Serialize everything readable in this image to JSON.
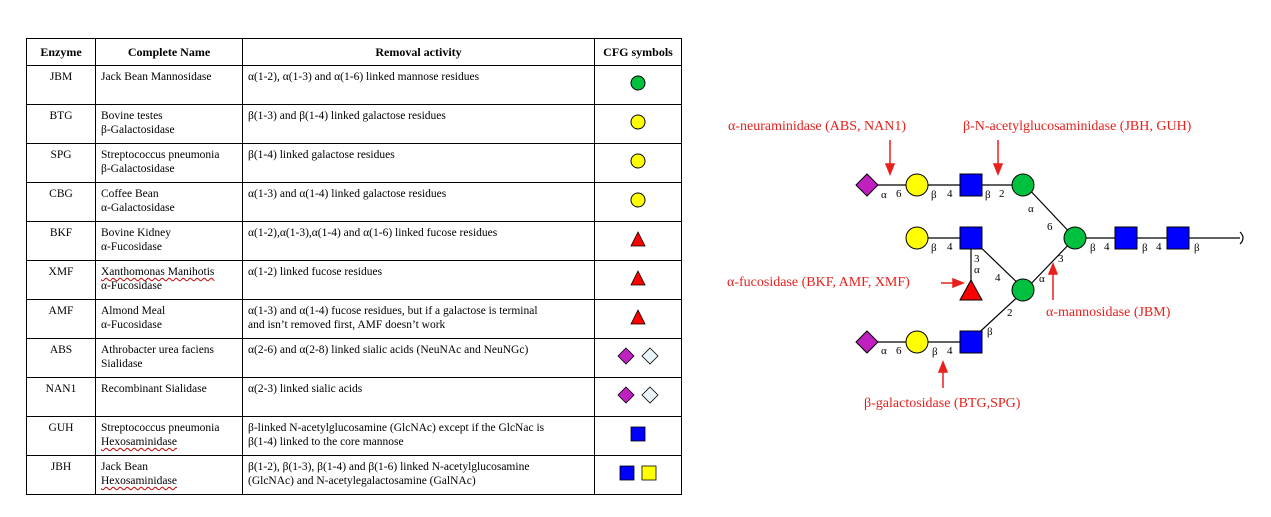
{
  "table": {
    "headers": [
      "Enzyme",
      "Complete Name",
      "Removal activity",
      "CFG symbols"
    ],
    "rows": [
      {
        "abbr": "JBM",
        "name1": "Jack Bean Mannosidase",
        "name2": "",
        "activity1": "α(1-2), α(1-3) and α(1-6) linked mannose residues",
        "activity2": "",
        "symbols": [
          "green-circle"
        ]
      },
      {
        "abbr": "BTG",
        "name1": "Bovine testes",
        "name2": "β-Galactosidase",
        "activity1": "β(1-3) and β(1-4) linked galactose residues",
        "activity2": "",
        "symbols": [
          "yellow-circle"
        ]
      },
      {
        "abbr": "SPG",
        "name1": "Streptococcus pneumonia",
        "name2": "β-Galactosidase",
        "activity1": "β(1-4) linked galactose residues",
        "activity2": "",
        "symbols": [
          "yellow-circle"
        ]
      },
      {
        "abbr": "CBG",
        "name1": "Coffee Bean",
        "name2": "α-Galactosidase",
        "activity1": "α(1-3) and α(1-4) linked galactose residues",
        "activity2": "",
        "symbols": [
          "yellow-circle"
        ]
      },
      {
        "abbr": "BKF",
        "name1": "Bovine Kidney",
        "name2": "α-Fucosidase",
        "activity1": "α(1-2),α(1-3),α(1-4) and α(1-6) linked fucose residues",
        "activity2": "",
        "symbols": [
          "red-triangle"
        ]
      },
      {
        "abbr": "XMF",
        "name1": "Xanthomonas Manihotis",
        "name2": "α-Fucosidase",
        "activity1": "α(1-2) linked fucose residues",
        "activity2": "",
        "symbols": [
          "red-triangle"
        ]
      },
      {
        "abbr": "AMF",
        "name1": "Almond Meal",
        "name2": "α-Fucosidase",
        "activity1": "α(1-3) and α(1-4) fucose residues, but if a galactose is terminal",
        "activity2": "and isn’t removed first, AMF doesn’t work",
        "symbols": [
          "red-triangle"
        ]
      },
      {
        "abbr": "ABS",
        "name1": "Athrobacter urea faciens",
        "name2": "Sialidase",
        "activity1": "α(2-6) and α(2-8) linked sialic acids (NeuNAc and NeuNGc)",
        "activity2": "",
        "symbols": [
          "purple-diamond",
          "light-diamond"
        ]
      },
      {
        "abbr": "NAN1",
        "name1": "Recombinant Sialidase",
        "name2": "",
        "activity1": "α(2-3) linked sialic acids",
        "activity2": "",
        "symbols": [
          "purple-diamond",
          "light-diamond"
        ]
      },
      {
        "abbr": "GUH",
        "name1": "Streptococcus pneumonia",
        "name2": "Hexosaminidase",
        "activity1": "β-linked N-acetylglucosamine (GlcNAc) except if the GlcNac is",
        "activity2": "β(1-4) linked to the core mannose",
        "symbols": [
          "blue-square"
        ]
      },
      {
        "abbr": "JBH",
        "name1": "Jack Bean",
        "name2": "Hexosaminidase",
        "activity1": "β(1-2), β(1-3), β(1-4) and β(1-6) linked N-acetylglucosamine",
        "activity2": "(GlcNAc)  and N-acetylegalactosamine (GalNAc)",
        "symbols": [
          "blue-square",
          "yellow-square"
        ]
      }
    ]
  },
  "diagram": {
    "enzymes": {
      "neuraminidase": "α-neuraminidase (ABS, NAN1)",
      "glucosaminidase": "β-N-acetylglucosaminidase (JBH, GUH)",
      "fucosidase": "α-fucosidase (BKF, AMF, XMF)",
      "mannosidase": "α-mannosidase (JBM)",
      "galactosidase": "β-galactosidase (BTG,SPG)"
    },
    "linkage_labels": {
      "top_sia_a": "α",
      "top_sia_pos": "6",
      "top_gal_b": "β",
      "top_gal_pos": "4",
      "top_glc_b": "β",
      "top_glc_pos": "2",
      "top_man_a": "α",
      "top_man_pos": "6",
      "mid_gal_b": "β",
      "mid_gal_pos": "4",
      "fuc_pos": "3",
      "fuc_a": "α",
      "mid_glc_pos": "4",
      "bot_man_a": "α",
      "bot_man_pos": "3",
      "bot_glc_pos": "2",
      "bot_glc_b": "β",
      "bot_sia_a": "α",
      "bot_sia_pos": "6",
      "bot_gal_b": "β",
      "bot_gal_pos": "4",
      "core_b1": "β",
      "core_pos1": "4",
      "core_b2": "β",
      "core_pos2": "4",
      "core_b3": "β"
    },
    "colors": {
      "sialic": "#c020c0",
      "galactose": "#ffff00",
      "glcnac": "#0000ff",
      "mannose": "#00c040",
      "fucose": "#ff0000",
      "enzyme_text": "#e8201c"
    }
  }
}
